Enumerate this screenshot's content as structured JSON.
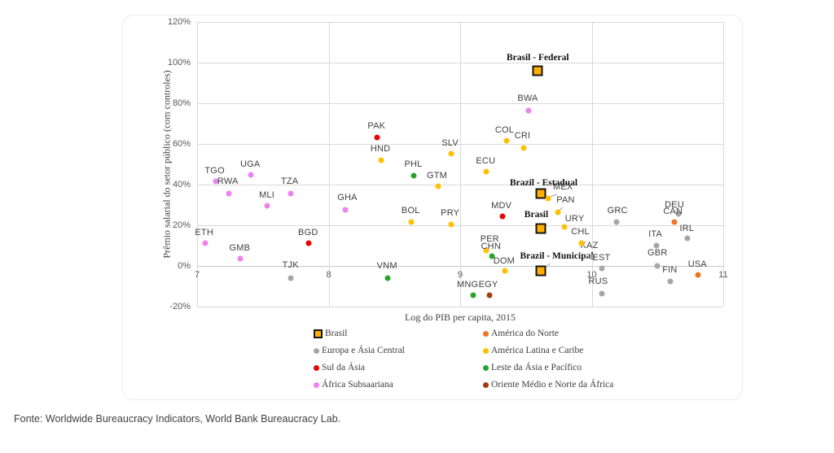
{
  "footer": {
    "source": "Fonte: Worldwide Bureaucracy Indicators, World Bank Bureaucracy Lab."
  },
  "chart_data": {
    "type": "scatter",
    "xlabel": "Log do PIB per capita, 2015",
    "ylabel": "Prêmio salarial do setor público (com controles)",
    "xlim": [
      7,
      11
    ],
    "ylim": [
      -20,
      120
    ],
    "x_ticks": [
      "7",
      "8",
      "9",
      "10",
      "11"
    ],
    "y_ticks": [
      "120%",
      "100%",
      "80%",
      "60%",
      "40%",
      "20%",
      "0%",
      "-20%"
    ],
    "grid": true,
    "legend_position": "bottom",
    "series": [
      {
        "name": "Brasil",
        "marker": "square",
        "color": "#ffaf00",
        "points": [
          {
            "label": "Brasil - Federal",
            "x": 9.59,
            "y": 96.0,
            "dx": 0,
            "dy": -16,
            "bold": true
          },
          {
            "label": "Brazil - Estadual",
            "x": 9.61,
            "y": 35.6,
            "dx": 4,
            "dy": -13,
            "bold": true
          },
          {
            "label": "Brasil",
            "x": 9.61,
            "y": 18.4,
            "dx": -5,
            "dy": -17,
            "bold": true
          },
          {
            "label": "Brazil - Municipal",
            "x": 9.61,
            "y": -2.4,
            "dx": 20,
            "dy": -18,
            "bold": true,
            "leader": true
          }
        ]
      },
      {
        "name": "Europa e Ásia Central",
        "marker": "circle",
        "color": "#a6a6a6",
        "points": [
          {
            "label": "TJK",
            "x": 7.71,
            "y": -6.0,
            "dx": 0,
            "dy": -16
          },
          {
            "label": "KAZ",
            "x": 10.0,
            "y": 4.4,
            "dx": -3,
            "dy": -14
          },
          {
            "label": "EST",
            "x": 10.08,
            "y": -1.2,
            "dx": -1,
            "dy": -13
          },
          {
            "label": "RUS",
            "x": 10.08,
            "y": -13.6,
            "dx": -5,
            "dy": -15
          },
          {
            "label": "GRC",
            "x": 10.19,
            "y": 21.6,
            "dx": 1,
            "dy": -14
          },
          {
            "label": "DEU",
            "x": 10.66,
            "y": 25.6,
            "dx": -5,
            "dy": -11
          },
          {
            "label": "IRL",
            "x": 10.73,
            "y": 13.6,
            "dx": -1,
            "dy": -12
          },
          {
            "label": "ITA",
            "x": 10.49,
            "y": 10.0,
            "dx": -1,
            "dy": -14
          },
          {
            "label": "GBR",
            "x": 10.5,
            "y": 0.0,
            "dx": 0,
            "dy": -16
          },
          {
            "label": "FIN",
            "x": 10.6,
            "y": -7.6,
            "dx": -1,
            "dy": -14
          }
        ]
      },
      {
        "name": "Sul da Ásia",
        "marker": "circle",
        "color": "#eb0000",
        "points": [
          {
            "label": "BGD",
            "x": 7.85,
            "y": 11.2,
            "dx": -1,
            "dy": -13
          },
          {
            "label": "PAK",
            "x": 8.37,
            "y": 63.2,
            "dx": -1,
            "dy": -14
          },
          {
            "label": "MDV",
            "x": 9.32,
            "y": 24.4,
            "dx": -1,
            "dy": -13
          }
        ]
      },
      {
        "name": "África Subsaariana",
        "marker": "circle",
        "color": "#ee82ee",
        "points": [
          {
            "label": "TGO",
            "x": 7.14,
            "y": 41.6,
            "dx": -1,
            "dy": -13
          },
          {
            "label": "RWA",
            "x": 7.24,
            "y": 35.6,
            "dx": -1,
            "dy": -15
          },
          {
            "label": "UGA",
            "x": 7.41,
            "y": 44.8,
            "dx": -1,
            "dy": -13
          },
          {
            "label": "TZA",
            "x": 7.71,
            "y": 35.6,
            "dx": -1,
            "dy": -15
          },
          {
            "label": "MLI",
            "x": 7.53,
            "y": 29.6,
            "dx": 0,
            "dy": -13
          },
          {
            "label": "GHA",
            "x": 8.13,
            "y": 27.6,
            "dx": 2,
            "dy": -15
          },
          {
            "label": "ETH",
            "x": 7.06,
            "y": 11.2,
            "dx": -1,
            "dy": -13
          },
          {
            "label": "GMB",
            "x": 7.33,
            "y": 3.6,
            "dx": -1,
            "dy": -13
          },
          {
            "label": "BWA",
            "x": 9.52,
            "y": 76.4,
            "dx": -1,
            "dy": -15
          }
        ]
      },
      {
        "name": "América do Norte",
        "marker": "circle",
        "color": "#f07522",
        "points": [
          {
            "label": "CAN",
            "x": 10.63,
            "y": 21.6,
            "dx": -2,
            "dy": -13
          },
          {
            "label": "USA",
            "x": 10.81,
            "y": -4.4,
            "dx": -1,
            "dy": -13
          }
        ]
      },
      {
        "name": "América Latina e Caribe",
        "marker": "circle",
        "color": "#ffc000",
        "points": [
          {
            "label": "HND",
            "x": 8.4,
            "y": 52.0,
            "dx": -1,
            "dy": -14
          },
          {
            "label": "SLV",
            "x": 8.93,
            "y": 55.2,
            "dx": -1,
            "dy": -13
          },
          {
            "label": "GTM",
            "x": 8.83,
            "y": 39.2,
            "dx": -1,
            "dy": -13
          },
          {
            "label": "ECU",
            "x": 9.2,
            "y": 46.4,
            "dx": -1,
            "dy": -13
          },
          {
            "label": "COL",
            "x": 9.35,
            "y": 61.6,
            "dx": -2,
            "dy": -13
          },
          {
            "label": "CRI",
            "x": 9.48,
            "y": 58.0,
            "dx": -1,
            "dy": -15
          },
          {
            "label": "BOL",
            "x": 8.63,
            "y": 21.6,
            "dx": -1,
            "dy": -14
          },
          {
            "label": "PRY",
            "x": 8.93,
            "y": 20.4,
            "dx": -1,
            "dy": -14
          },
          {
            "label": "PER",
            "x": 9.2,
            "y": 7.6,
            "dx": 4,
            "dy": -14
          },
          {
            "label": "DOM",
            "x": 9.34,
            "y": -2.4,
            "dx": -1,
            "dy": -12
          },
          {
            "label": "MEX",
            "x": 9.67,
            "y": 33.2,
            "dx": 18,
            "dy": -14,
            "leader": true
          },
          {
            "label": "PAN",
            "x": 9.74,
            "y": 26.4,
            "dx": 10,
            "dy": -15,
            "leader": true
          },
          {
            "label": "URY",
            "x": 9.79,
            "y": 19.2,
            "dx": 13,
            "dy": -10
          },
          {
            "label": "CHL",
            "x": 9.92,
            "y": 11.2,
            "dx": -1,
            "dy": -14
          }
        ]
      },
      {
        "name": "Leste da Ásia e Pacífico",
        "marker": "circle",
        "color": "#2ca42c",
        "points": [
          {
            "label": "VNM",
            "x": 8.45,
            "y": -6.0,
            "dx": -1,
            "dy": -15
          },
          {
            "label": "PHL",
            "x": 8.65,
            "y": 44.4,
            "dx": -1,
            "dy": -14
          },
          {
            "label": "CHN",
            "x": 9.24,
            "y": 4.8,
            "dx": -1,
            "dy": -12
          },
          {
            "label": "MNG",
            "x": 9.1,
            "y": -14.4,
            "dx": -7,
            "dy": -13
          }
        ]
      },
      {
        "name": "Oriente Médio e Norte da África",
        "marker": "circle",
        "color": "#a23b0e",
        "points": [
          {
            "label": "EGY",
            "x": 9.22,
            "y": -14.4,
            "dx": -1,
            "dy": -13
          }
        ]
      }
    ],
    "legend": {
      "columns": [
        [
          {
            "label": "Brasil",
            "marker": "square",
            "color": "#ffaf00"
          },
          {
            "label": "Europa e Ásia Central",
            "marker": "circle",
            "color": "#a6a6a6"
          },
          {
            "label": "Sul da Ásia",
            "marker": "circle",
            "color": "#eb0000"
          },
          {
            "label": "África Subsaariana",
            "marker": "circle",
            "color": "#ee82ee"
          }
        ],
        [
          {
            "label": "América do Norte",
            "marker": "circle",
            "color": "#f07522"
          },
          {
            "label": "América Latina e Caribe",
            "marker": "circle",
            "color": "#ffc000"
          },
          {
            "label": "Leste da Ásia e Pacífico",
            "marker": "circle",
            "color": "#2ca42c"
          },
          {
            "label": "Oriente Médio e Norte da África",
            "marker": "circle",
            "color": "#a23b0e"
          }
        ]
      ]
    }
  }
}
